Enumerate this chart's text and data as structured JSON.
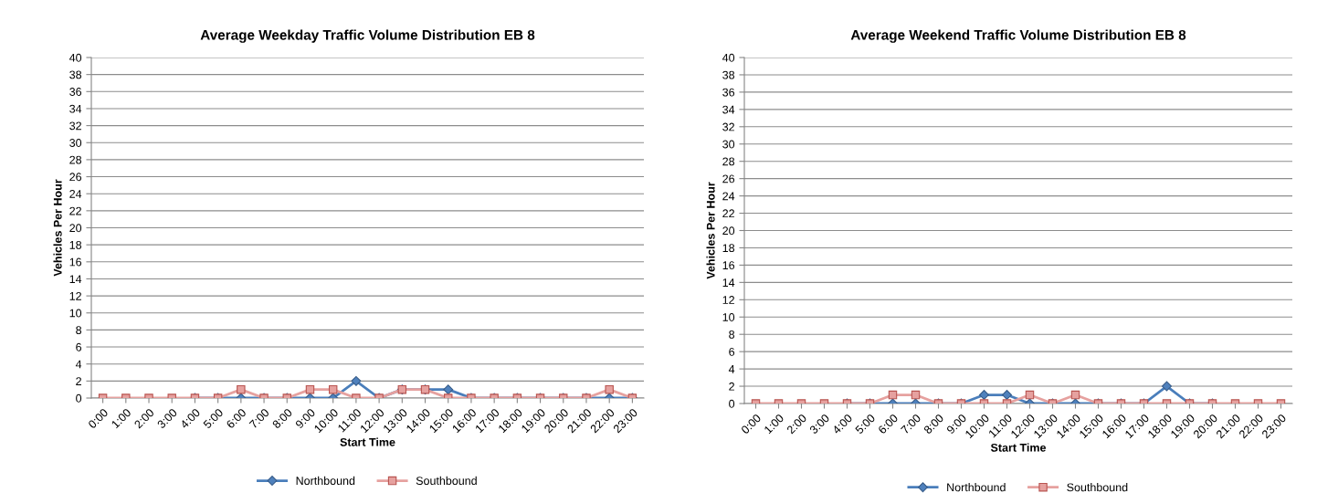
{
  "chart_data": [
    {
      "type": "line",
      "title": "Average Weekday Traffic Volume Distribution EB 8",
      "xlabel": "Start Time",
      "ylabel": "Vehicles Per Hour",
      "categories": [
        "0:00",
        "1:00",
        "2:00",
        "3:00",
        "4:00",
        "5:00",
        "6:00",
        "7:00",
        "8:00",
        "9:00",
        "10:00",
        "11:00",
        "12:00",
        "13:00",
        "14:00",
        "15:00",
        "16:00",
        "17:00",
        "18:00",
        "19:00",
        "20:00",
        "21:00",
        "22:00",
        "23:00"
      ],
      "series": [
        {
          "name": "Northbound",
          "color": "#4a7ebb",
          "marker": "diamond",
          "values": [
            null,
            null,
            null,
            null,
            0,
            0,
            0,
            0,
            0,
            0,
            0,
            2,
            0,
            1,
            1,
            1,
            0,
            0,
            0,
            0,
            0,
            0,
            0,
            0
          ]
        },
        {
          "name": "Southbound",
          "color": "#e6a19f",
          "marker": "square",
          "values": [
            0,
            0,
            0,
            0,
            0,
            0,
            1,
            0,
            0,
            1,
            1,
            0,
            0,
            1,
            1,
            0,
            0,
            0,
            0,
            0,
            0,
            0,
            1,
            0
          ]
        }
      ],
      "ylim": [
        0,
        40
      ],
      "yticks": [
        0,
        2,
        4,
        6,
        8,
        10,
        12,
        14,
        16,
        18,
        20,
        22,
        24,
        26,
        28,
        30,
        32,
        34,
        36,
        38,
        40
      ],
      "grid": "y",
      "legend": "bottom",
      "line_style": "solid"
    },
    {
      "type": "line",
      "title": "Average Weekend Traffic Volume Distribution EB 8",
      "xlabel": "Start Time",
      "ylabel": "Vehicles Per Hour",
      "categories": [
        "0:00",
        "1:00",
        "2:00",
        "3:00",
        "4:00",
        "5:00",
        "6:00",
        "7:00",
        "8:00",
        "9:00",
        "10:00",
        "11:00",
        "12:00",
        "13:00",
        "14:00",
        "15:00",
        "16:00",
        "17:00",
        "18:00",
        "19:00",
        "20:00",
        "21:00",
        "22:00",
        "23:00"
      ],
      "series": [
        {
          "name": "Northbound",
          "color": "#4a7ebb",
          "marker": "diamond",
          "values": [
            null,
            null,
            null,
            null,
            0,
            0,
            0,
            0,
            0,
            0,
            1,
            1,
            0,
            0,
            0,
            0,
            0,
            0,
            2,
            0,
            0,
            null,
            null,
            null
          ]
        },
        {
          "name": "Southbound",
          "color": "#e6a19f",
          "marker": "square",
          "values": [
            0,
            0,
            0,
            0,
            0,
            0,
            1,
            1,
            0,
            0,
            0,
            0,
            1,
            0,
            1,
            0,
            0,
            0,
            0,
            0,
            0,
            0,
            0,
            0
          ]
        }
      ],
      "ylim": [
        0,
        40
      ],
      "yticks": [
        0,
        2,
        4,
        6,
        8,
        10,
        12,
        14,
        16,
        18,
        20,
        22,
        24,
        26,
        28,
        30,
        32,
        34,
        36,
        38,
        40
      ],
      "grid": "y",
      "legend": "bottom",
      "line_style": "solid"
    }
  ]
}
